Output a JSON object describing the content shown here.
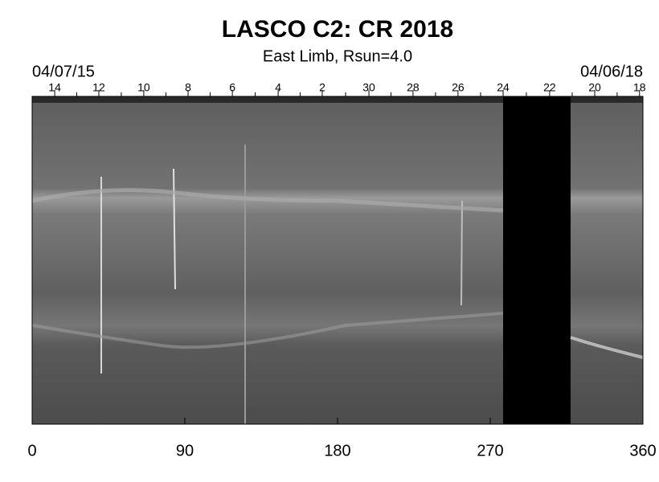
{
  "chart_data": {
    "type": "image",
    "title": "LASCO C2: CR 2018",
    "subtitle": "East Limb, Rsun=4.0",
    "start_date": "04/07/15",
    "end_date": "04/06/18",
    "xlim": [
      0,
      360
    ],
    "xticks": [
      0,
      90,
      180,
      270,
      360
    ],
    "top_ticks": [
      {
        "value": 13.3,
        "label": "14"
      },
      {
        "value": 39.3,
        "label": "12"
      },
      {
        "value": 65.8,
        "label": "10"
      },
      {
        "value": 91.9,
        "label": "8"
      },
      {
        "value": 118,
        "label": "6"
      },
      {
        "value": 145,
        "label": "4"
      },
      {
        "value": 171,
        "label": "2"
      },
      {
        "value": 198.5,
        "label": "30"
      },
      {
        "value": 224.5,
        "label": "28"
      },
      {
        "value": 251,
        "label": "26"
      },
      {
        "value": 277.6,
        "label": "24"
      },
      {
        "value": 305,
        "label": "22"
      },
      {
        "value": 331.6,
        "label": "20"
      },
      {
        "value": 358,
        "label": "18"
      }
    ]
  }
}
